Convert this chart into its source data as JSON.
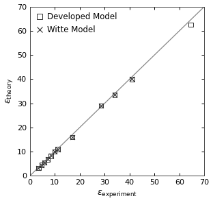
{
  "xlim": [
    0,
    70
  ],
  "ylim": [
    0,
    70
  ],
  "xticks": [
    0,
    10,
    20,
    30,
    40,
    50,
    60,
    70
  ],
  "yticks": [
    0,
    10,
    20,
    30,
    40,
    50,
    60,
    70
  ],
  "diagonal_color": "#888888",
  "developed_model_x": [
    3.5,
    4.8,
    5.8,
    7.2,
    8.5,
    10.0,
    11.2,
    17.0,
    28.5,
    34.0,
    41.0,
    64.5
  ],
  "developed_model_y": [
    3.3,
    4.5,
    5.5,
    6.8,
    8.2,
    10.0,
    11.0,
    16.0,
    29.0,
    33.5,
    40.0,
    62.5
  ],
  "witte_model_x": [
    3.5,
    4.8,
    5.8,
    7.2,
    8.5,
    10.0,
    11.2,
    17.0,
    28.5,
    34.0,
    41.0
  ],
  "witte_model_y": [
    3.3,
    4.5,
    5.5,
    6.8,
    8.2,
    10.0,
    11.0,
    16.0,
    29.0,
    33.5,
    40.0
  ],
  "marker_color": "#333333",
  "background_color": "#ffffff",
  "legend_fontsize": 8.5,
  "tick_labelsize": 8,
  "label_fontsize": 9
}
